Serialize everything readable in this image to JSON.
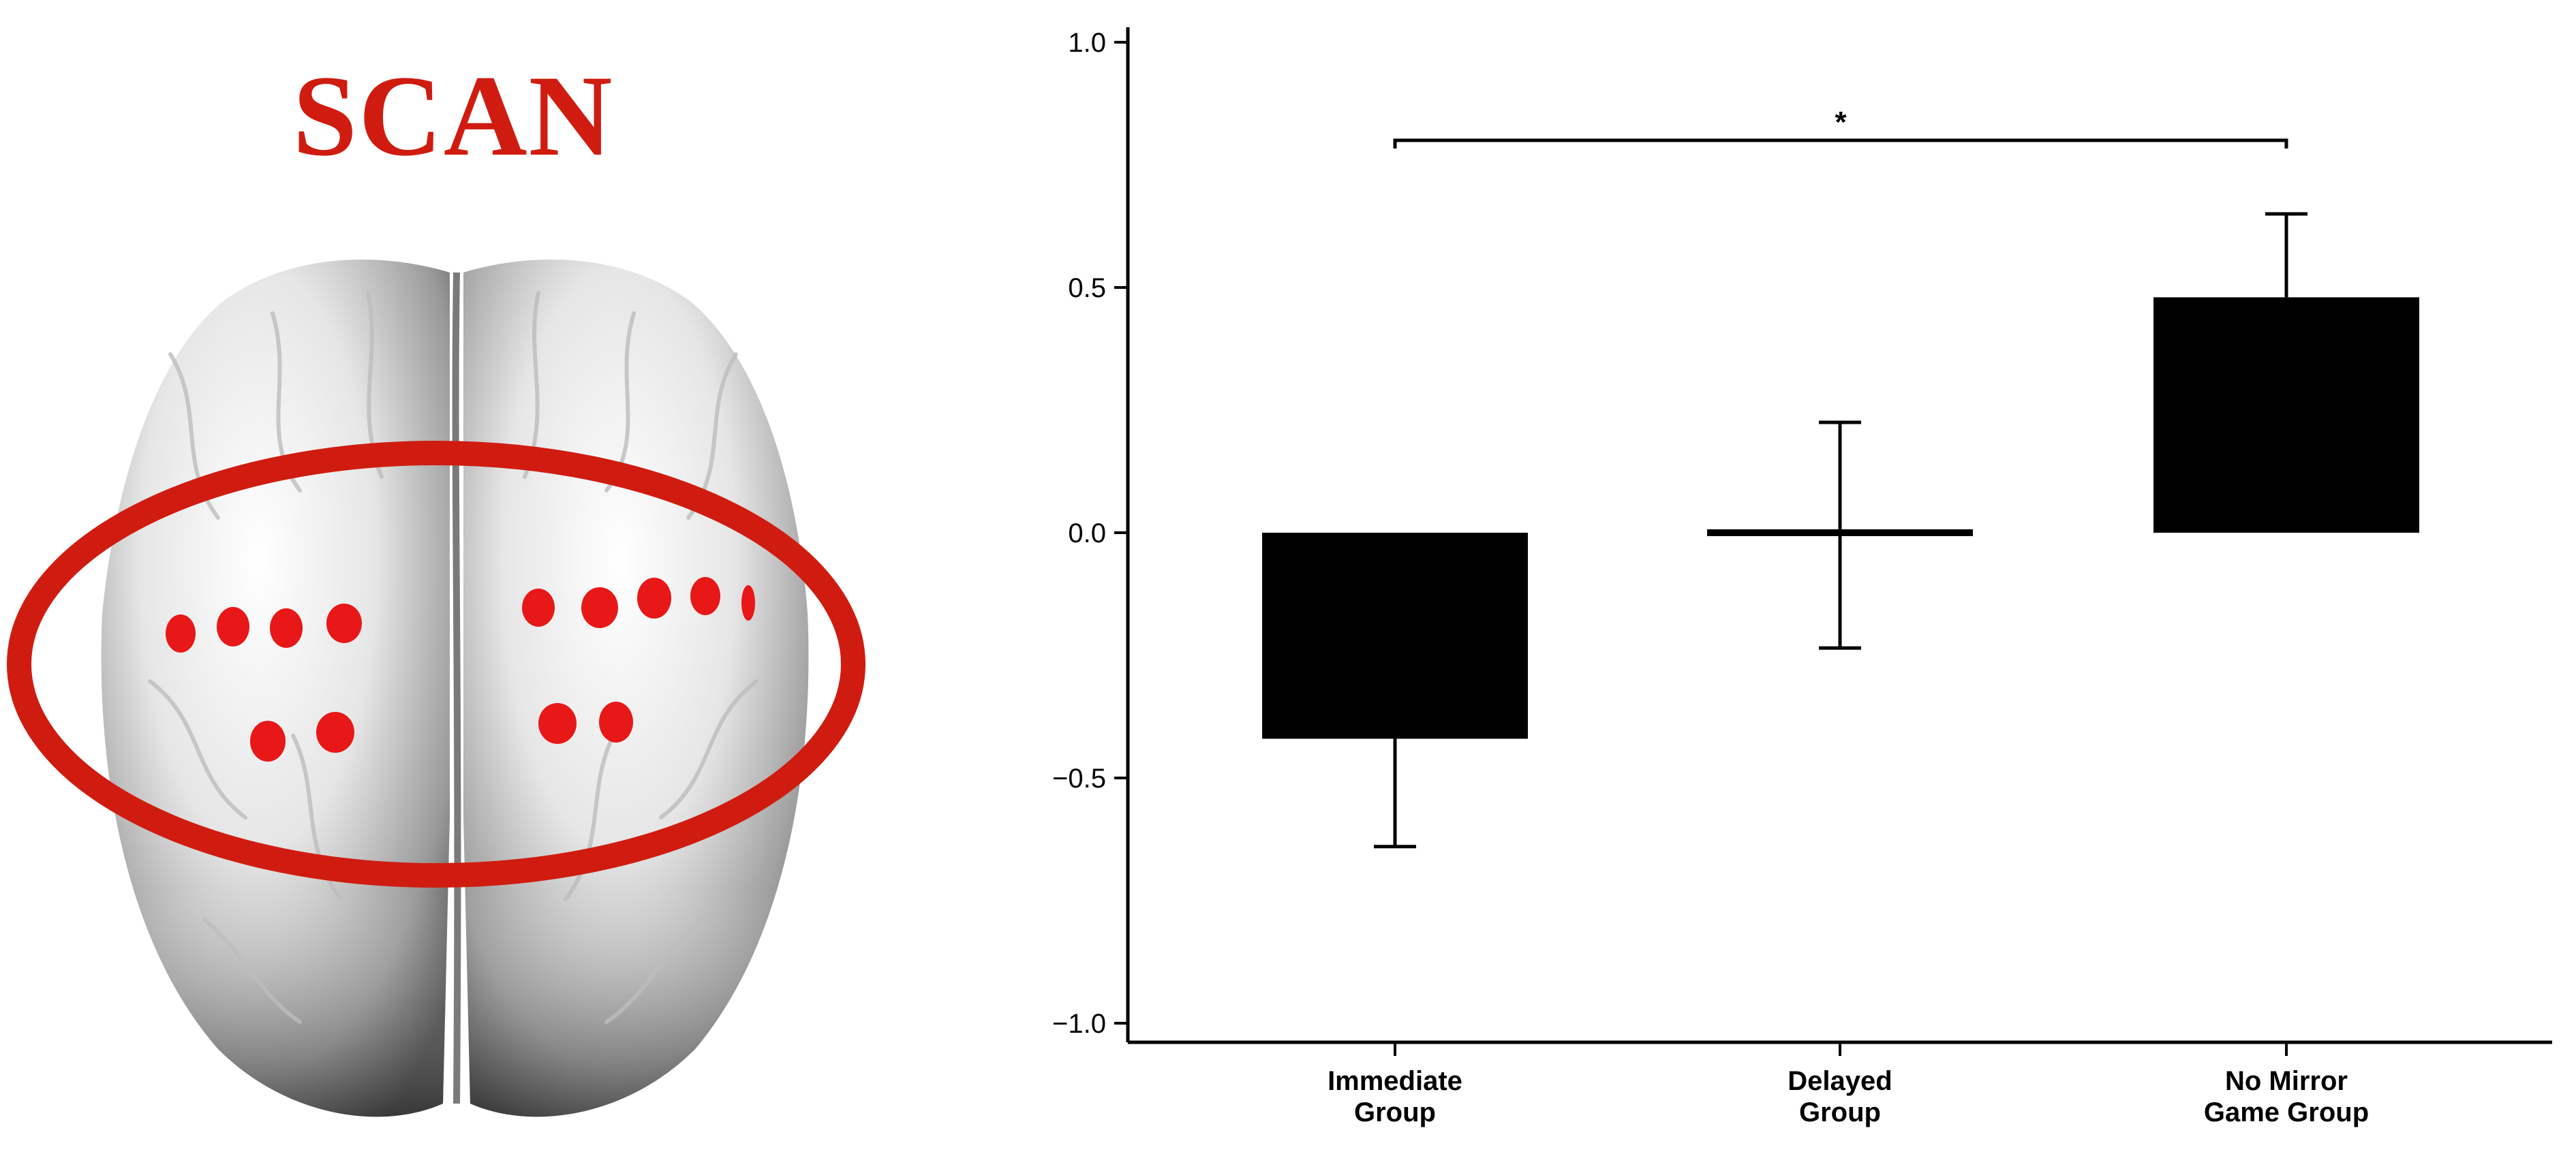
{
  "colors": {
    "accent_red": "#d01c10",
    "electrode_red": "#e81818",
    "bar_fill": "#000000",
    "brain_light": "#f2f2f2",
    "brain_dark": "#4a4a4a"
  },
  "brain_panel": {
    "title": "SCAN",
    "electrode_rows": 2,
    "highlight": "scan-region-ellipse"
  },
  "chart_data": {
    "type": "bar",
    "categories": [
      [
        "Immediate",
        "Group"
      ],
      [
        "Delayed",
        "Group"
      ],
      [
        "No Mirror",
        "Game Group"
      ]
    ],
    "values": [
      -0.42,
      -0.005,
      0.48
    ],
    "error": [
      0.22,
      0.23,
      0.17
    ],
    "ylim": [
      -1.0,
      1.0
    ],
    "yticks": [
      1.0,
      0.5,
      0.0,
      -0.5,
      -1.0
    ],
    "ytick_labels": [
      "1.0",
      "0.5",
      "0.0",
      "−0.5",
      "−1.0"
    ],
    "significance": {
      "from": 0,
      "to": 2,
      "y": 0.8,
      "label": "*"
    },
    "title": "",
    "xlabel": "",
    "ylabel": "",
    "grid": false,
    "legend": "none"
  }
}
